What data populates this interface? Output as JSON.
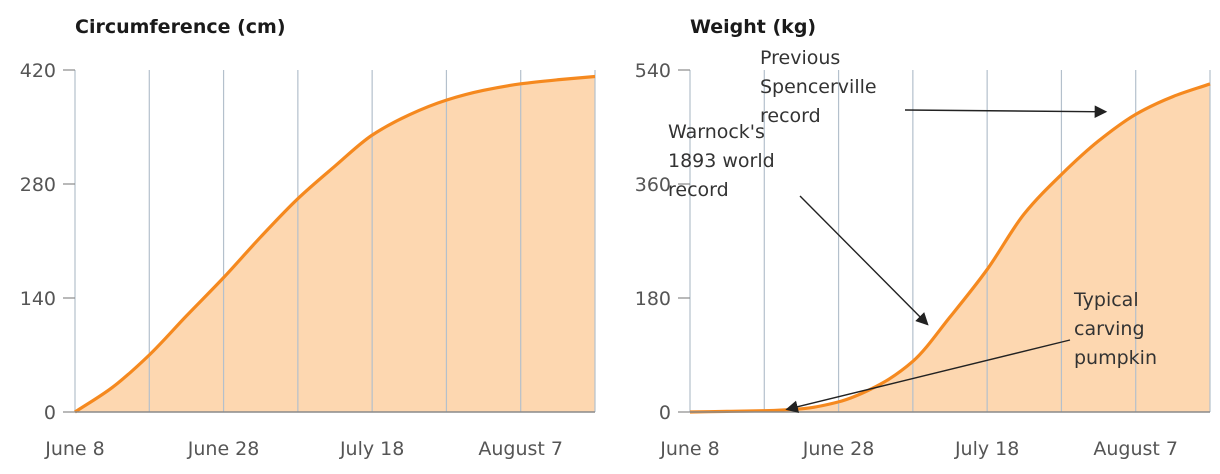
{
  "colors": {
    "line": "#f5891f",
    "fill": "#fdd7b0",
    "grid": "#b4c0cc",
    "axis": "#8a8a8a",
    "arrow": "#222222"
  },
  "chart_data": [
    {
      "type": "area",
      "title": "Circumference (cm)",
      "xlabel": "",
      "ylabel": "",
      "x_tick_labels": [
        "June 8",
        "June 28",
        "July 18",
        "August 7"
      ],
      "x_days_since_june_8": [
        0,
        10,
        20,
        30,
        40,
        50,
        60,
        70
      ],
      "y_ticks": [
        0,
        140,
        280,
        420
      ],
      "ylim": [
        0,
        420
      ],
      "xlim": [
        0,
        70
      ],
      "series": [
        {
          "name": "Circumference",
          "x": [
            0,
            5,
            10,
            15,
            20,
            25,
            30,
            35,
            40,
            45,
            50,
            55,
            60,
            65,
            70
          ],
          "y": [
            0,
            30,
            70,
            118,
            165,
            215,
            262,
            302,
            340,
            365,
            383,
            395,
            403,
            408,
            412
          ]
        }
      ]
    },
    {
      "type": "area",
      "title": "Weight (kg)",
      "xlabel": "",
      "ylabel": "",
      "x_tick_labels": [
        "June 8",
        "June 28",
        "July 18",
        "August 7"
      ],
      "y_ticks": [
        0,
        180,
        360,
        540
      ],
      "ylim": [
        0,
        540
      ],
      "xlim": [
        0,
        70
      ],
      "series": [
        {
          "name": "Weight",
          "x": [
            0,
            5,
            10,
            15,
            20,
            25,
            30,
            35,
            40,
            45,
            50,
            55,
            60,
            65,
            70
          ],
          "y": [
            0,
            1,
            2,
            5,
            16,
            40,
            80,
            150,
            225,
            313,
            375,
            428,
            470,
            498,
            518
          ]
        }
      ],
      "annotations": [
        {
          "lines": [
            "Previous",
            "Spencerville",
            "record"
          ],
          "target": {
            "x": 56,
            "y": 474
          }
        },
        {
          "lines": [
            "Warnock's",
            "1893 world",
            "record"
          ],
          "target": {
            "x": 32,
            "y": 138
          }
        },
        {
          "lines": [
            "Typical",
            "carving",
            "pumpkin"
          ],
          "target": {
            "x": 13,
            "y": 4
          }
        }
      ]
    }
  ]
}
